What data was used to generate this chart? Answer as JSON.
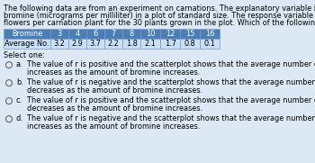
{
  "title_line1": "The following data are from an experiment on carnations. The explanatory variable is the amount of inorganic",
  "title_line2": "bromine (micrograms per milliliter) in a plot of standard size. The response variable is the average number of",
  "title_line3": "flowers per carnation plant for the 30 plants grown in the plot. Which of the following statements is true?",
  "table_header": [
    "Bromine",
    "3",
    "4",
    "6",
    "7",
    "8",
    "10",
    "12",
    "15",
    "16"
  ],
  "table_row": [
    "Average No.",
    "3.2",
    "2.9",
    "3.7",
    "2.2",
    "1.8",
    "2.1",
    "1.7",
    "0.8",
    "0.1"
  ],
  "select_one": "Select one:",
  "options": [
    {
      "label": "a.",
      "text1": "The value of r is positive and the scatterplot shows that the average number of flowers per carnation",
      "text2": "increases as the amount of bromine increases."
    },
    {
      "label": "b.",
      "text1": "The value of r is negative and the scatterplot shows that the average number of flowers per carnation",
      "text2": "decreases as the amount of bromine increases."
    },
    {
      "label": "c.",
      "text1": "The value of r is positive and the scatterplot shows that the average number of flowers per carnation",
      "text2": "decreases as the amount of bromine increases."
    },
    {
      "label": "d.",
      "text1": "The value of r is negative and the scatterplot shows that the average number of flowers per carnation",
      "text2": "increases as the amount of bromine increases."
    }
  ],
  "bg_color": "#dce9f5",
  "table_header_bg": "#4a7fb5",
  "table_header_fg": "#ffffff",
  "table_row_bg": "#c8dff5",
  "table_border_color": "#7a9abf",
  "title_fontsize": 5.85,
  "table_fontsize": 5.85,
  "option_fontsize": 5.85,
  "select_fontsize": 5.85
}
